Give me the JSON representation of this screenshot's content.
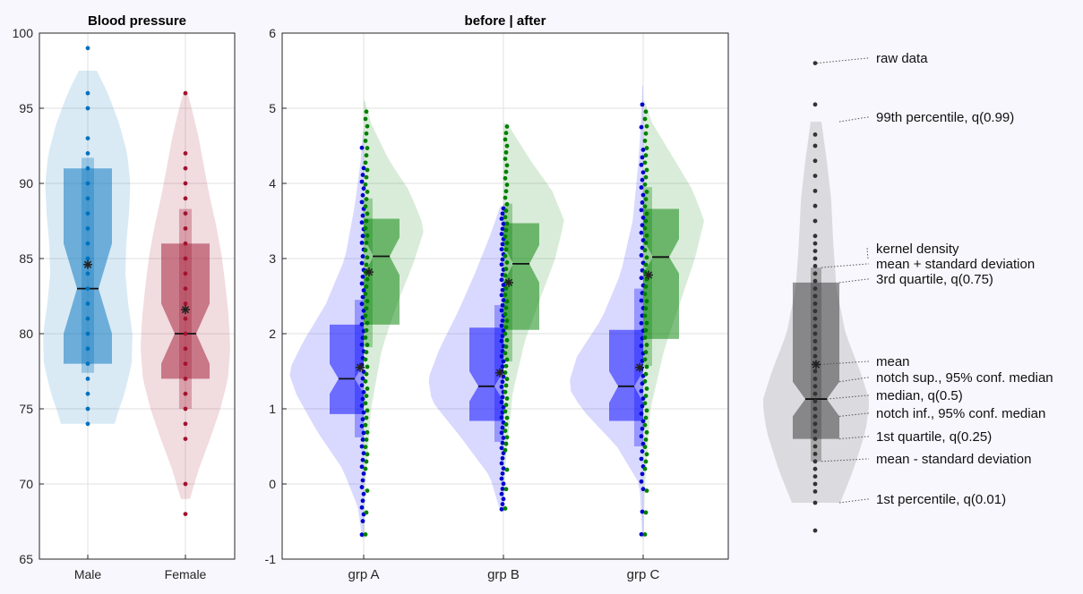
{
  "chart_data": [
    {
      "type": "violin",
      "title": "Blood pressure",
      "xlabel": "",
      "ylabel": "",
      "ylim": [
        65,
        100
      ],
      "yticks": [
        65,
        70,
        75,
        80,
        85,
        90,
        95,
        100
      ],
      "grid": true,
      "categories": [
        "Male",
        "Female"
      ],
      "colors": [
        "#0072BD",
        "#A2142F"
      ],
      "groups": [
        {
          "category": "Male",
          "median": 83,
          "q1": 78,
          "q3": 91,
          "mean": 84.6,
          "notch_low": 80,
          "notch_high": 86,
          "mean_minus_sd": 77.4,
          "mean_plus_sd": 91.7,
          "violin_min": 74,
          "violin_max": 97.5,
          "kde": [
            [
              74,
              0.6
            ],
            [
              75,
              0.7
            ],
            [
              76,
              0.82
            ],
            [
              78,
              0.98
            ],
            [
              80,
              1
            ],
            [
              82,
              0.9
            ],
            [
              84,
              0.84
            ],
            [
              86,
              0.86
            ],
            [
              88,
              0.92
            ],
            [
              90,
              0.95
            ],
            [
              92,
              0.88
            ],
            [
              94,
              0.7
            ],
            [
              96,
              0.45
            ],
            [
              97.5,
              0.2
            ]
          ],
          "points": [
            74,
            75,
            76,
            77,
            78,
            79,
            80,
            81,
            82,
            83,
            84,
            85,
            86,
            87,
            88,
            89,
            90,
            91,
            92,
            93,
            95,
            96,
            99
          ]
        },
        {
          "category": "Female",
          "median": 80,
          "q1": 77,
          "q3": 86,
          "mean": 81.6,
          "notch_low": 78,
          "notch_high": 82,
          "mean_minus_sd": 75,
          "mean_plus_sd": 88.3,
          "violin_min": 69,
          "violin_max": 96,
          "kde": [
            [
              69,
              0.1
            ],
            [
              71,
              0.3
            ],
            [
              73,
              0.55
            ],
            [
              75,
              0.78
            ],
            [
              77,
              0.95
            ],
            [
              79,
              1
            ],
            [
              81,
              0.97
            ],
            [
              83,
              0.9
            ],
            [
              85,
              0.82
            ],
            [
              87,
              0.7
            ],
            [
              89,
              0.55
            ],
            [
              91,
              0.42
            ],
            [
              93,
              0.3
            ],
            [
              95,
              0.14
            ],
            [
              96,
              0.05
            ]
          ],
          "points": [
            68,
            70,
            73,
            74,
            75,
            76,
            77,
            78,
            79,
            80,
            81,
            82,
            83,
            84,
            85,
            86,
            87,
            88,
            89,
            90,
            91,
            92,
            96
          ]
        }
      ]
    },
    {
      "type": "violin",
      "title": "before | after",
      "xlabel": "",
      "ylabel": "",
      "ylim": [
        -1,
        6
      ],
      "yticks": [
        -1,
        0,
        1,
        2,
        3,
        4,
        5,
        6
      ],
      "grid": true,
      "categories": [
        "grp A",
        "grp B",
        "grp C"
      ],
      "series": [
        {
          "name": "",
          "side": "left",
          "color": "#0000FF",
          "point_color": "#0000CC"
        },
        {
          "name": "",
          "side": "right",
          "color": "#008000",
          "point_color": "#008000"
        }
      ],
      "groups": [
        {
          "category": "grp A",
          "before": {
            "median": 1.4,
            "q1": 0.93,
            "q3": 2.12,
            "mean": 1.55,
            "notch_low": 1.2,
            "notch_high": 1.6,
            "mean_minus_sd": 0.62,
            "mean_plus_sd": 2.45,
            "violin_min": -0.72,
            "violin_max": 4.7,
            "kde": [
              [
                -0.72,
                0.02
              ],
              [
                -0.3,
                0.08
              ],
              [
                0.2,
                0.28
              ],
              [
                0.7,
                0.62
              ],
              [
                1.2,
                0.9
              ],
              [
                1.5,
                1
              ],
              [
                1.9,
                0.8
              ],
              [
                2.4,
                0.5
              ],
              [
                3,
                0.25
              ],
              [
                3.7,
                0.12
              ],
              [
                4.3,
                0.04
              ],
              [
                4.7,
                0.01
              ]
            ]
          },
          "after": {
            "median": 3.03,
            "q1": 2.12,
            "q3": 3.53,
            "mean": 2.82,
            "notch_low": 2.78,
            "notch_high": 3.28,
            "mean_minus_sd": 1.82,
            "mean_plus_sd": 3.8,
            "violin_min": -0.72,
            "violin_max": 5.1,
            "kde": [
              [
                -0.72,
                0.01
              ],
              [
                0,
                0.03
              ],
              [
                1,
                0.12
              ],
              [
                1.8,
                0.3
              ],
              [
                2.4,
                0.55
              ],
              [
                2.9,
                0.8
              ],
              [
                3.4,
                1
              ],
              [
                3.9,
                0.75
              ],
              [
                4.3,
                0.42
              ],
              [
                4.8,
                0.12
              ],
              [
                5.1,
                0.02
              ]
            ]
          }
        },
        {
          "category": "grp B",
          "before": {
            "median": 1.3,
            "q1": 0.84,
            "q3": 2.08,
            "mean": 1.48,
            "notch_low": 1.1,
            "notch_high": 1.5,
            "mean_minus_sd": 0.56,
            "mean_plus_sd": 2.38,
            "violin_min": -0.37,
            "violin_max": 3.7,
            "kde": [
              [
                -0.37,
                0.04
              ],
              [
                0.1,
                0.18
              ],
              [
                0.6,
                0.55
              ],
              [
                1.1,
                0.95
              ],
              [
                1.4,
                1
              ],
              [
                1.8,
                0.85
              ],
              [
                2.3,
                0.6
              ],
              [
                2.8,
                0.38
              ],
              [
                3.3,
                0.18
              ],
              [
                3.7,
                0.04
              ]
            ]
          },
          "after": {
            "median": 2.93,
            "q1": 2.05,
            "q3": 3.47,
            "mean": 2.68,
            "notch_low": 2.68,
            "notch_high": 3.18,
            "mean_minus_sd": 1.63,
            "mean_plus_sd": 3.73,
            "violin_min": -0.37,
            "violin_max": 4.8,
            "kde": [
              [
                -0.37,
                0.01
              ],
              [
                0.3,
                0.04
              ],
              [
                1.2,
                0.15
              ],
              [
                1.9,
                0.35
              ],
              [
                2.5,
                0.62
              ],
              [
                3,
                0.85
              ],
              [
                3.5,
                1
              ],
              [
                3.9,
                0.8
              ],
              [
                4.3,
                0.45
              ],
              [
                4.8,
                0.06
              ]
            ]
          }
        },
        {
          "category": "grp C",
          "before": {
            "median": 1.3,
            "q1": 0.84,
            "q3": 2.05,
            "mean": 1.55,
            "notch_low": 1.08,
            "notch_high": 1.5,
            "mean_minus_sd": 0.5,
            "mean_plus_sd": 2.6,
            "violin_min": -0.72,
            "violin_max": 5.3,
            "kde": [
              [
                -0.72,
                0.01
              ],
              [
                0,
                0.05
              ],
              [
                0.5,
                0.35
              ],
              [
                1,
                0.82
              ],
              [
                1.3,
                1
              ],
              [
                1.7,
                0.88
              ],
              [
                2.2,
                0.55
              ],
              [
                2.8,
                0.3
              ],
              [
                3.5,
                0.14
              ],
              [
                4.2,
                0.07
              ],
              [
                4.8,
                0.03
              ],
              [
                5.3,
                0.01
              ]
            ]
          },
          "after": {
            "median": 3.02,
            "q1": 1.93,
            "q3": 3.66,
            "mean": 2.78,
            "notch_low": 2.8,
            "notch_high": 3.26,
            "mean_minus_sd": 1.57,
            "mean_plus_sd": 3.95,
            "violin_min": -0.72,
            "violin_max": 5.1,
            "kde": [
              [
                -0.72,
                0.01
              ],
              [
                0,
                0.03
              ],
              [
                1,
                0.12
              ],
              [
                1.8,
                0.35
              ],
              [
                2.4,
                0.6
              ],
              [
                3,
                0.85
              ],
              [
                3.5,
                1
              ],
              [
                3.9,
                0.82
              ],
              [
                4.4,
                0.45
              ],
              [
                4.8,
                0.15
              ],
              [
                5.1,
                0.02
              ]
            ]
          }
        }
      ]
    },
    {
      "type": "violin",
      "title": "",
      "axis_visible": false,
      "color": "#333333",
      "ylim": [
        -1,
        6
      ],
      "median": 1.13,
      "q1": 0.6,
      "q3": 2.68,
      "mean": 1.59,
      "notch_low": 0.9,
      "notch_high": 1.36,
      "mean_minus_sd": 0.3,
      "mean_plus_sd": 2.88,
      "q01": -0.25,
      "q99": 4.82,
      "kde": [
        [
          -0.25,
          0.45
        ],
        [
          0.2,
          0.7
        ],
        [
          0.7,
          0.92
        ],
        [
          1.1,
          1
        ],
        [
          1.5,
          0.82
        ],
        [
          2,
          0.55
        ],
        [
          2.6,
          0.38
        ],
        [
          3.2,
          0.32
        ],
        [
          3.8,
          0.28
        ],
        [
          4.3,
          0.2
        ],
        [
          4.82,
          0.1
        ]
      ],
      "points": [
        -0.62,
        -0.25,
        -0.1,
        0,
        0.1,
        0.2,
        0.3,
        0.4,
        0.5,
        0.6,
        0.7,
        0.8,
        0.9,
        1,
        1.1,
        1.2,
        1.3,
        1.4,
        1.5,
        1.6,
        1.7,
        1.8,
        1.9,
        2,
        2.1,
        2.2,
        2.3,
        2.4,
        2.5,
        2.6,
        2.7,
        2.8,
        2.9,
        3,
        3.1,
        3.2,
        3.3,
        3.5,
        3.7,
        3.9,
        4.1,
        4.3,
        4.5,
        4.65,
        5.05,
        5.6
      ],
      "annotations": {
        "raw_data": "raw data",
        "q99": "99th percentile, q(0.99)",
        "kde": "kernel density",
        "mean_plus_sd": "mean + standard deviation",
        "q3": "3rd quartile, q(0.75)",
        "mean": "mean",
        "notch_high": "notch sup., 95% conf. median",
        "median": "median, q(0.5)",
        "notch_low": "notch inf., 95% conf. median",
        "q1": "1st quartile, q(0.25)",
        "mean_minus_sd": "mean - standard deviation",
        "q01": "1st percentile, q(0.01)"
      }
    }
  ]
}
